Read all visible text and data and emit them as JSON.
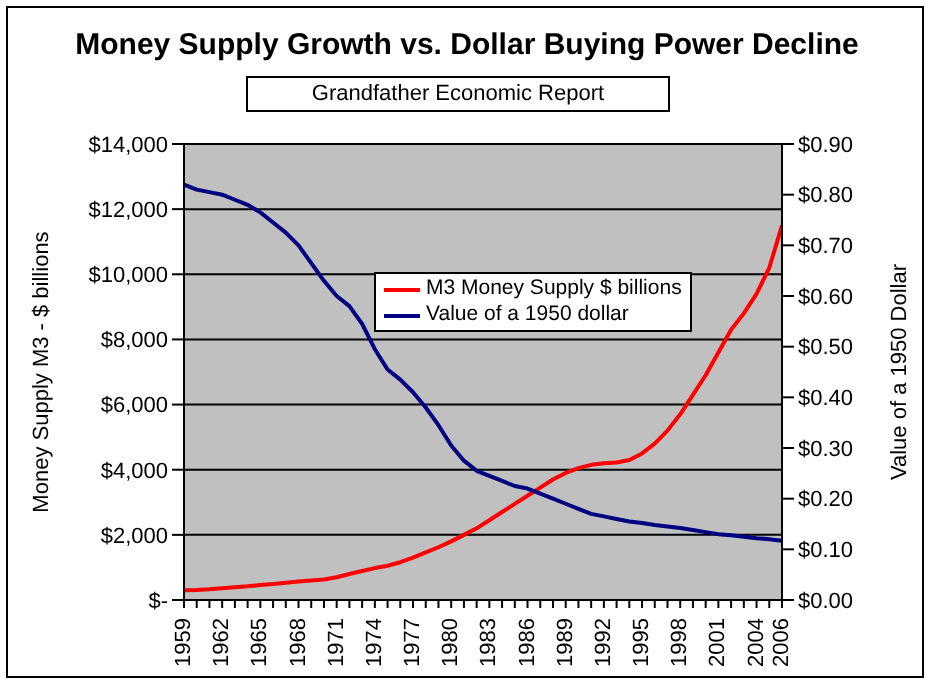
{
  "chart_data": {
    "type": "line",
    "title": "Money Supply Growth vs. Dollar Buying Power Decline",
    "subtitle": "Grandfather Economic Report",
    "categories": [
      "1959",
      null,
      null,
      "1962",
      null,
      null,
      "1965",
      null,
      null,
      "1968",
      null,
      null,
      "1971",
      null,
      null,
      "1974",
      null,
      null,
      "1977",
      null,
      null,
      "1980",
      null,
      null,
      "1983",
      null,
      null,
      "1986",
      null,
      null,
      "1989",
      null,
      null,
      "1992",
      null,
      null,
      "1995",
      null,
      null,
      "1998",
      null,
      null,
      "2001",
      null,
      null,
      "2004",
      null,
      "2006"
    ],
    "ylabel": "Money Supply M3 - $ billions",
    "y2label": "Value of a 1950 Dollar",
    "ylim": [
      0,
      14000
    ],
    "yticks": [
      {
        "value": 0,
        "label": "$-"
      },
      {
        "value": 2000,
        "label": "$2,000"
      },
      {
        "value": 4000,
        "label": "$4,000"
      },
      {
        "value": 6000,
        "label": "$6,000"
      },
      {
        "value": 8000,
        "label": "$8,000"
      },
      {
        "value": 10000,
        "label": "$10,000"
      },
      {
        "value": 12000,
        "label": "$12,000"
      },
      {
        "value": 14000,
        "label": "$14,000"
      }
    ],
    "y2lim": [
      0,
      0.9
    ],
    "y2ticks": [
      {
        "value": 0,
        "label": "$0.00"
      },
      {
        "value": 0.1,
        "label": "$0.10"
      },
      {
        "value": 0.2,
        "label": "$0.20"
      },
      {
        "value": 0.3,
        "label": "$0.30"
      },
      {
        "value": 0.4,
        "label": "$0.40"
      },
      {
        "value": 0.5,
        "label": "$0.50"
      },
      {
        "value": 0.6,
        "label": "$0.60"
      },
      {
        "value": 0.7,
        "label": "$0.70"
      },
      {
        "value": 0.8,
        "label": "$0.80"
      },
      {
        "value": 0.9,
        "label": "$0.90"
      }
    ],
    "series": [
      {
        "name": "M3 Money Supply $ billions",
        "color": "#ff0000",
        "values": [
          300,
          310,
          330,
          360,
          390,
          420,
          460,
          490,
          530,
          570,
          600,
          630,
          700,
          800,
          890,
          980,
          1050,
          1160,
          1300,
          1460,
          1620,
          1800,
          2000,
          2200,
          2450,
          2700,
          2950,
          3200,
          3450,
          3700,
          3900,
          4050,
          4150,
          4200,
          4220,
          4300,
          4500,
          4800,
          5200,
          5700,
          6300,
          6900,
          7600,
          8300,
          8800,
          9400,
          10200,
          11500
        ]
      },
      {
        "name": "Value of a 1950 dollar",
        "color": "#000080",
        "axis": "y2",
        "values": [
          0.82,
          0.81,
          0.805,
          0.8,
          0.79,
          0.78,
          0.765,
          0.745,
          0.725,
          0.7,
          0.665,
          0.63,
          0.6,
          0.58,
          0.545,
          0.495,
          0.455,
          0.435,
          0.41,
          0.38,
          0.345,
          0.305,
          0.275,
          0.255,
          0.245,
          0.235,
          0.225,
          0.22,
          0.21,
          0.2,
          0.19,
          0.18,
          0.17,
          0.165,
          0.16,
          0.155,
          0.152,
          0.148,
          0.145,
          0.142,
          0.138,
          0.134,
          0.13,
          0.128,
          0.125,
          0.122,
          0.12,
          0.117
        ]
      }
    ],
    "grid": "y",
    "legend": "top",
    "marker": "none",
    "line_style": "solid"
  }
}
